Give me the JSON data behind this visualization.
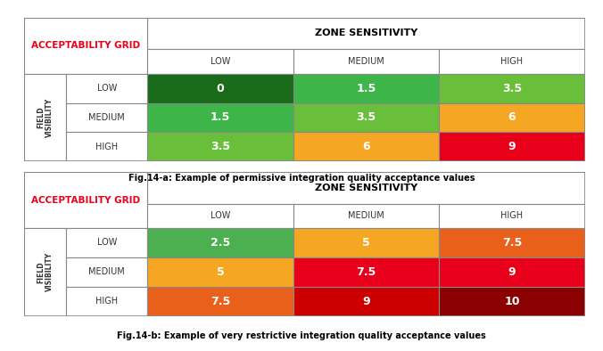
{
  "table_a": {
    "title_caption": "Fig.14-a: Example of permissive integration quality acceptance values",
    "header_zone": "ZONE SENSITIVITY",
    "header_acceptability": "ACCEPTABILITY GRID",
    "col_labels": [
      "LOW",
      "MEDIUM",
      "HIGH"
    ],
    "row_labels": [
      "LOW",
      "MEDIUM",
      "HIGH"
    ],
    "values": [
      [
        "0",
        "1.5",
        "3.5"
      ],
      [
        "1.5",
        "3.5",
        "6"
      ],
      [
        "3.5",
        "6",
        "9"
      ]
    ],
    "colors": [
      [
        "#1a6b1a",
        "#3db549",
        "#6abf3a"
      ],
      [
        "#3db549",
        "#6abf3a",
        "#f5a623"
      ],
      [
        "#6abf3a",
        "#f5a623",
        "#e8001a"
      ]
    ]
  },
  "table_b": {
    "title_caption": "Fig.14-b: Example of very restrictive integration quality acceptance values",
    "header_zone": "ZONE SENSITIVITY",
    "header_acceptability": "ACCEPTABILITY GRID",
    "col_labels": [
      "LOW",
      "MEDIUM",
      "HIGH"
    ],
    "row_labels": [
      "LOW",
      "MEDIUM",
      "HIGH"
    ],
    "values": [
      [
        "2.5",
        "5",
        "7.5"
      ],
      [
        "5",
        "7.5",
        "9"
      ],
      [
        "7.5",
        "9",
        "10"
      ]
    ],
    "colors": [
      [
        "#4caf50",
        "#f5a623",
        "#e8601a"
      ],
      [
        "#f5a623",
        "#e8001a",
        "#e8001a"
      ],
      [
        "#e8601a",
        "#cc0000",
        "#8b0000"
      ]
    ]
  },
  "acceptability_text_color": "#e8001a",
  "border_color": "#888888",
  "fig_bg": "#ffffff"
}
